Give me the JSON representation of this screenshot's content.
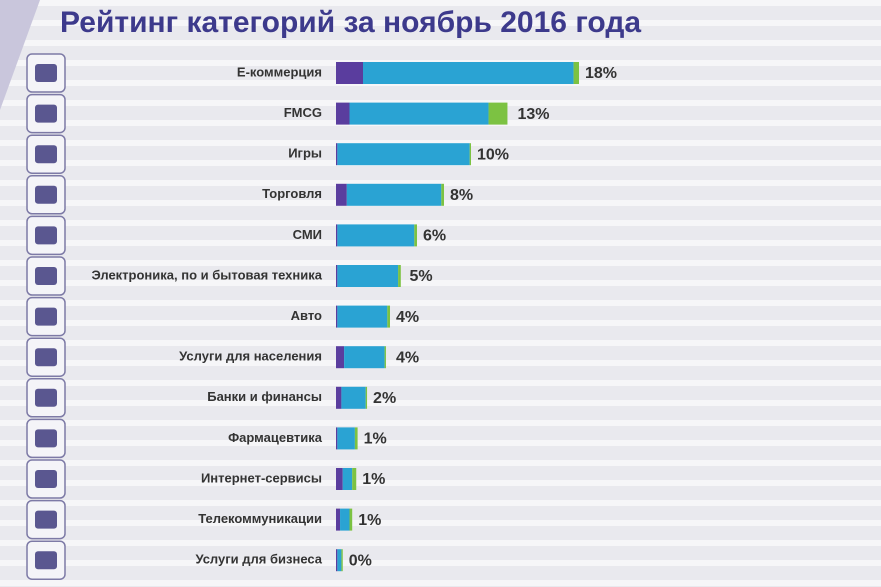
{
  "chart_data": {
    "type": "stacked_bar_horizontal",
    "title": "Рейтинг категорий за ноябрь 2016 года",
    "categories": [
      "E-коммерция",
      "FMCG",
      "Игры",
      "Торговля",
      "СМИ",
      "Электроника, по и бытовая техника",
      "Авто",
      "Услуги для населения",
      "Банки и финансы",
      "Фармацевтика",
      "Интернет-сервисы",
      "Телекоммуникации",
      "Услуги для бизнеса"
    ],
    "series": [
      {
        "color": "#5a3d9e",
        "values": [
          2.0,
          1.0,
          0.1,
          0.8,
          0.1,
          0.1,
          0.1,
          0.6,
          0.4,
          0.1,
          0.5,
          0.3,
          0.1
        ]
      },
      {
        "color": "#2aa3d3",
        "values": [
          15.6,
          10.3,
          9.8,
          7.0,
          5.7,
          4.5,
          3.7,
          3.0,
          1.8,
          1.3,
          0.7,
          0.7,
          0.3
        ]
      },
      {
        "color": "#7cc242",
        "values": [
          0.4,
          1.4,
          0.1,
          0.2,
          0.2,
          0.2,
          0.2,
          0.1,
          0.1,
          0.2,
          0.3,
          0.2,
          0.1
        ]
      }
    ],
    "values": [
      18,
      13,
      10,
      8,
      6,
      5,
      4,
      4,
      2,
      1,
      1,
      1,
      0
    ],
    "value_labels": [
      "18%",
      "13%",
      "10%",
      "8%",
      "6%",
      "5%",
      "4%",
      "4%",
      "2%",
      "1%",
      "1%",
      "1%",
      "0%"
    ]
  }
}
